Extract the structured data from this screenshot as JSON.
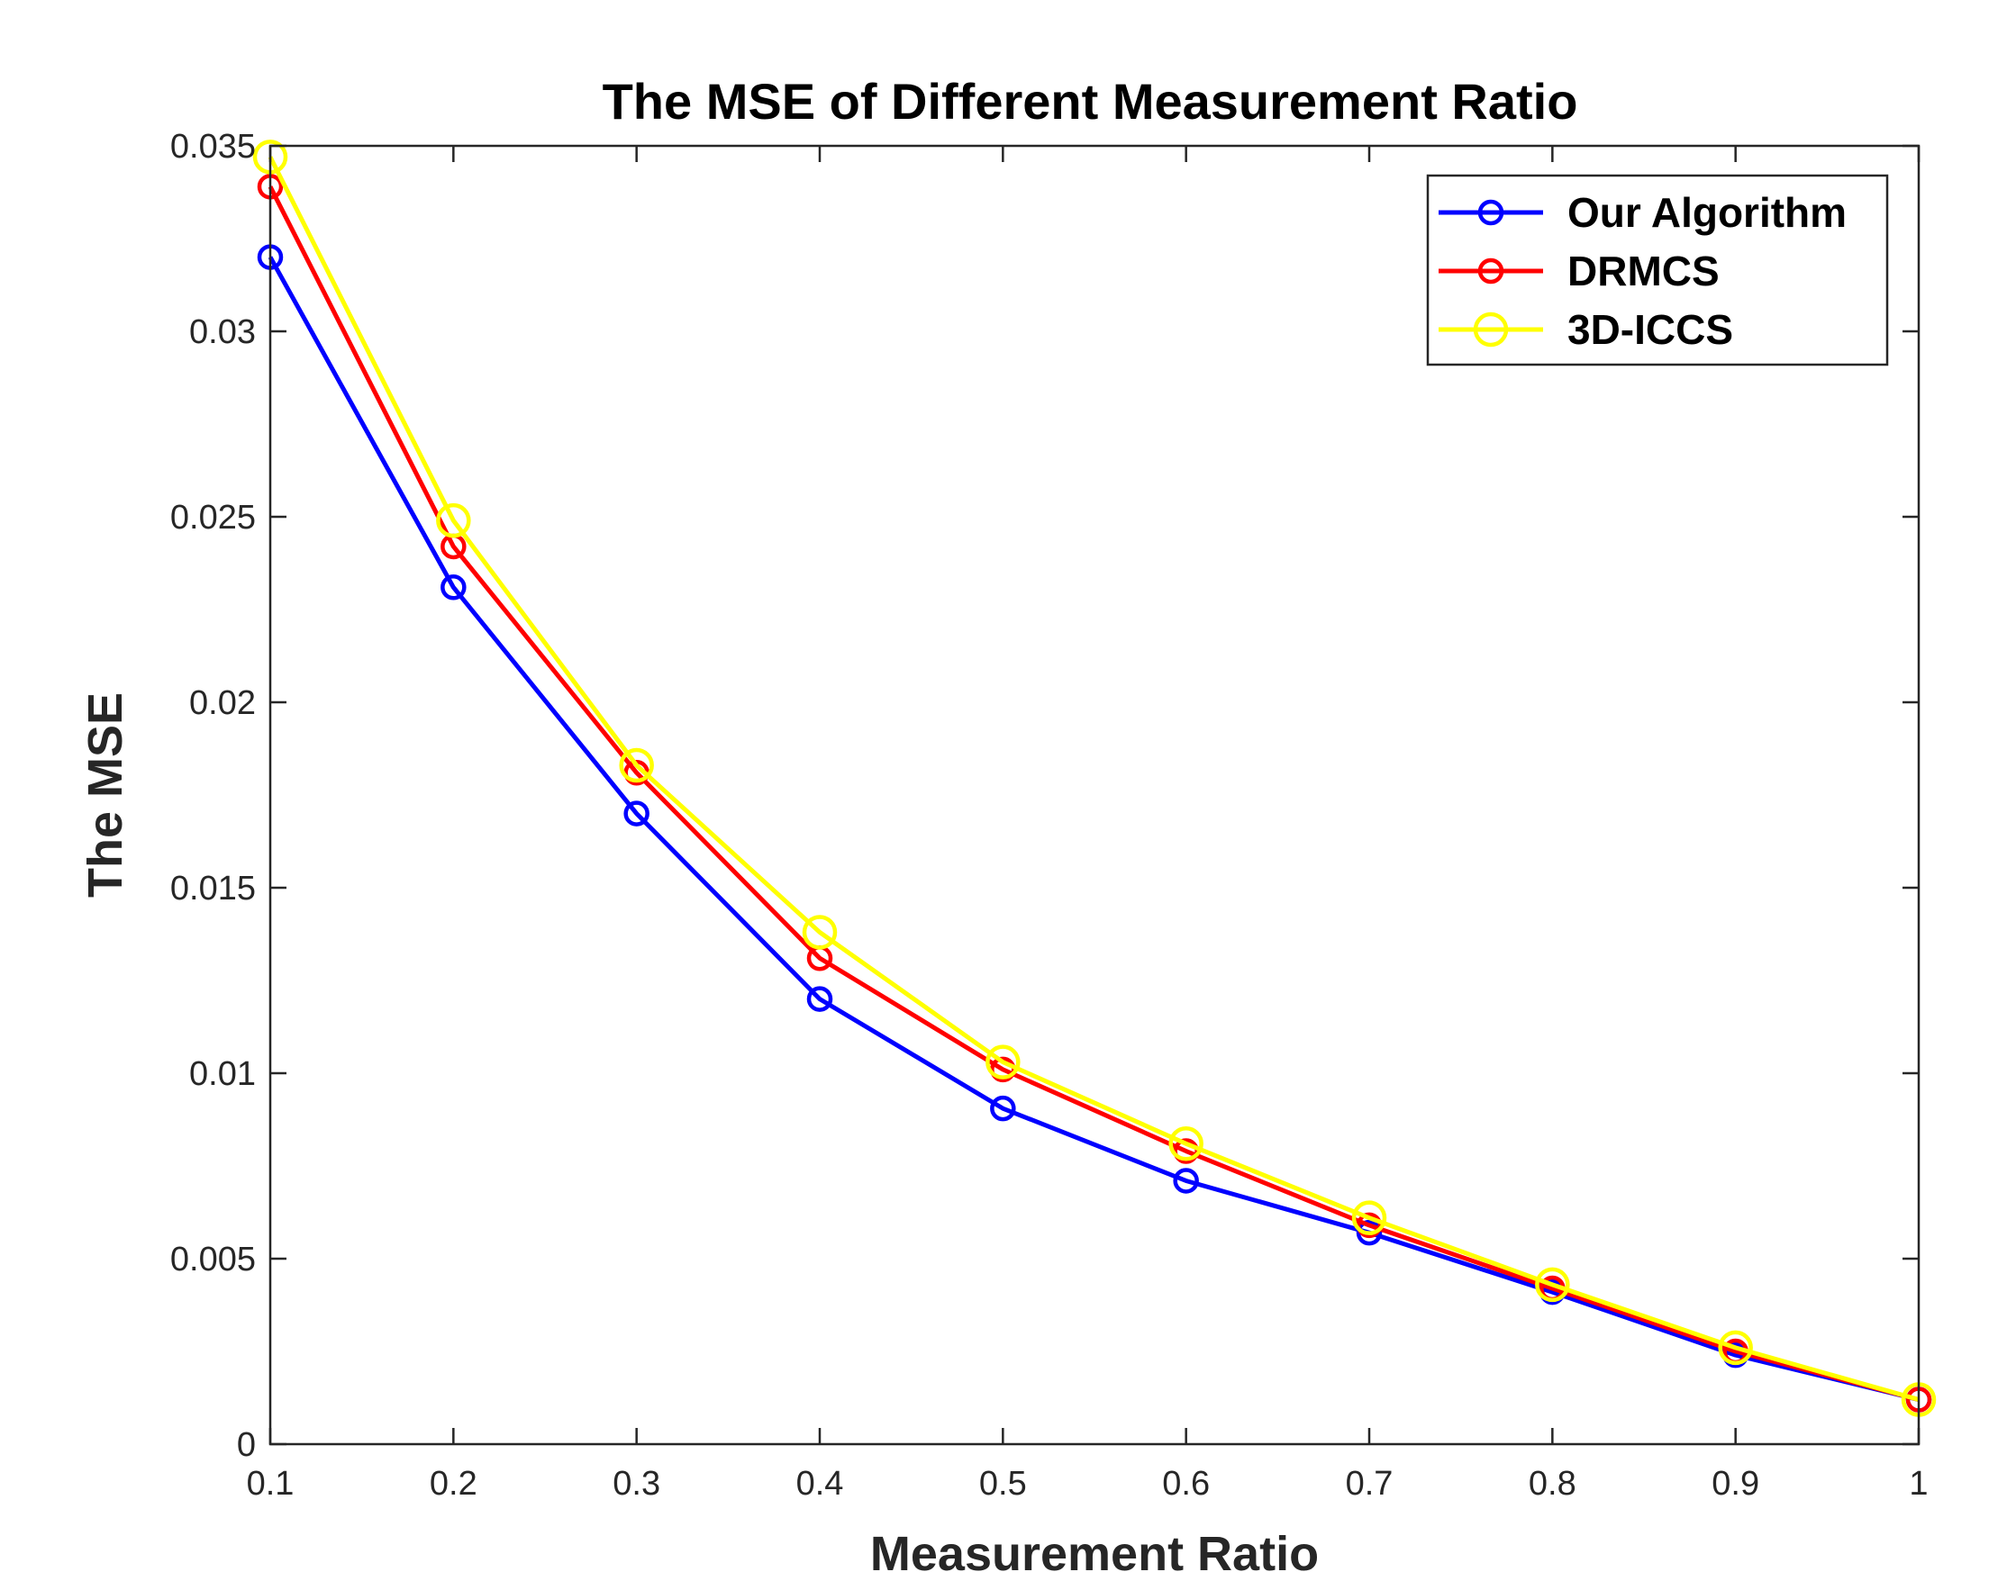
{
  "chart_data": {
    "type": "line",
    "title": "The MSE of Different Measurement Ratio",
    "xlabel": "Measurement Ratio",
    "ylabel": "The MSE",
    "xlim": [
      0.1,
      1
    ],
    "ylim": [
      0,
      0.035
    ],
    "x": [
      0.1,
      0.2,
      0.3,
      0.4,
      0.5,
      0.6,
      0.7,
      0.8,
      0.9,
      1
    ],
    "xticks": [
      "0.1",
      "0.2",
      "0.3",
      "0.4",
      "0.5",
      "0.6",
      "0.7",
      "0.8",
      "0.9",
      "1"
    ],
    "yticks": [
      "0",
      "0.005",
      "0.01",
      "0.015",
      "0.02",
      "0.025",
      "0.03",
      "0.035"
    ],
    "ytick_values": [
      0,
      0.005,
      0.01,
      0.015,
      0.02,
      0.025,
      0.03,
      0.035
    ],
    "grid": false,
    "legend_position": "top-right",
    "series": [
      {
        "name": "Our Algorithm",
        "color": "#0000ff",
        "marker": "circle-small",
        "values": [
          0.032,
          0.0231,
          0.017,
          0.012,
          0.00905,
          0.0071,
          0.0057,
          0.0041,
          0.0024,
          0.0012
        ]
      },
      {
        "name": "DRMCS",
        "color": "#ff0000",
        "marker": "circle-small",
        "values": [
          0.0339,
          0.0242,
          0.0181,
          0.0131,
          0.0101,
          0.0079,
          0.0059,
          0.0042,
          0.0025,
          0.0012
        ]
      },
      {
        "name": "3D-ICCS",
        "color": "#ffff00",
        "marker": "circle-large",
        "values": [
          0.0347,
          0.0249,
          0.0183,
          0.0138,
          0.0103,
          0.0081,
          0.0061,
          0.0043,
          0.0026,
          0.0012
        ]
      }
    ]
  }
}
